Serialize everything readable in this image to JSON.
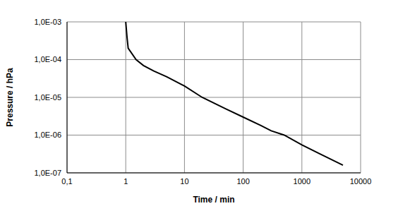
{
  "chart_data": {
    "type": "line",
    "x_label": "Time / min",
    "y_label": "Pressure / hPa",
    "log": true,
    "grid": true,
    "color": "#000000",
    "xlim": [
      0.1,
      10000
    ],
    "ylim": [
      1e-07,
      0.001
    ],
    "xticks": [
      {
        "value": 0.1,
        "label": "0,1"
      },
      1,
      10,
      100,
      1000,
      10000
    ],
    "yticks": [
      {
        "value": 1e-07,
        "label": "1,0E-07"
      },
      {
        "value": 1e-06,
        "label": "1,0E-06"
      },
      {
        "value": 1e-05,
        "label": "1,0E-05"
      },
      {
        "value": 0.0001,
        "label": "1,0E-04"
      },
      {
        "value": 0.001,
        "label": "1,0E-03"
      }
    ],
    "x": [
      1.0,
      1.05,
      1.1,
      1.5,
      2,
      3,
      5,
      10,
      20,
      50,
      100,
      200,
      300,
      500,
      1000,
      2000,
      5000
    ],
    "values": [
      0.001,
      0.0004,
      0.0002,
      0.0001,
      7e-05,
      5e-05,
      3.5e-05,
      2e-05,
      1e-05,
      5e-06,
      3e-06,
      1.8e-06,
      1.3e-06,
      1e-06,
      5.5e-07,
      3.2e-07,
      1.6e-07
    ]
  }
}
